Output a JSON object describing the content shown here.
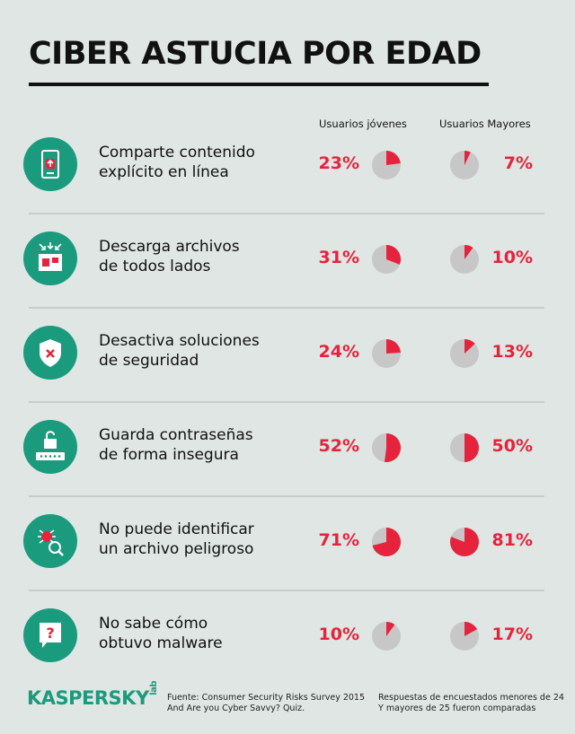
{
  "title": "CIBER ASTUCIA POR EDAD",
  "columns": {
    "young": "Usuarios jóvenes",
    "older": "Usuarios Mayores"
  },
  "colors": {
    "accent_red": "#e6233c",
    "pie_grey": "#c7c7c7",
    "icon_green": "#1b9b7e"
  },
  "rows": [
    {
      "label_line1": "Comparte contenido",
      "label_line2": "explícito en línea",
      "icon": "phone-upload-icon",
      "young_label": "23%",
      "older_label": "7%"
    },
    {
      "label_line1": "Descarga archivos",
      "label_line2": "de todos lados",
      "icon": "download-files-icon",
      "young_label": "31%",
      "older_label": "10%"
    },
    {
      "label_line1": "Desactiva soluciones",
      "label_line2": "de seguridad",
      "icon": "shield-x-icon",
      "young_label": "24%",
      "older_label": "13%"
    },
    {
      "label_line1": "Guarda contraseñas",
      "label_line2": "de forma insegura",
      "icon": "unlock-password-icon",
      "young_label": "52%",
      "older_label": "50%"
    },
    {
      "label_line1": "No puede identificar",
      "label_line2": "un archivo peligroso",
      "icon": "bug-magnifier-icon",
      "young_label": "71%",
      "older_label": "81%"
    },
    {
      "label_line1": "No sabe cómo",
      "label_line2": "obtuvo malware",
      "icon": "question-bubble-icon",
      "young_label": "10%",
      "older_label": "17%"
    }
  ],
  "chart_data": {
    "type": "pie",
    "categories": [
      "Comparte contenido explícito en línea",
      "Descarga archivos de todos lados",
      "Desactiva soluciones de seguridad",
      "Guarda contraseñas de forma insegura",
      "No puede identificar un archivo peligroso",
      "No sabe cómo obtuvo malware"
    ],
    "series": [
      {
        "name": "Usuarios jóvenes",
        "values": [
          23,
          31,
          24,
          52,
          71,
          10
        ]
      },
      {
        "name": "Usuarios Mayores",
        "values": [
          7,
          10,
          13,
          50,
          81,
          17
        ]
      }
    ],
    "title": "CIBER ASTUCIA POR EDAD"
  },
  "footer": {
    "logo": "KASPERSKY",
    "logo_suffix": "lab",
    "source_line1": "Fuente: Consumer Security Risks Survey 2015",
    "source_line2": "And Are you Cyber Savvy? Quiz.",
    "note_line1": "Respuestas de encuestados menores de 24",
    "note_line2": "Y mayores de 25 fueron comparadas"
  }
}
